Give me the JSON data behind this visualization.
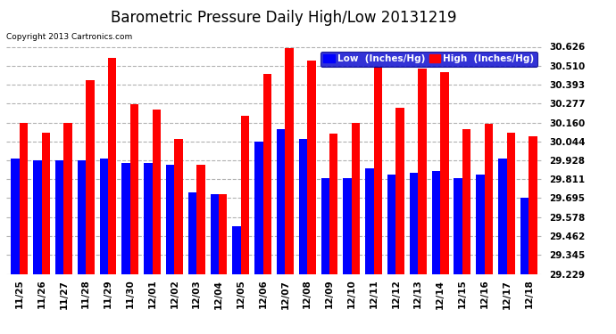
{
  "title": "Barometric Pressure Daily High/Low 20131219",
  "copyright": "Copyright 2013 Cartronics.com",
  "legend_low": "Low  (Inches/Hg)",
  "legend_high": "High  (Inches/Hg)",
  "ylim": [
    29.229,
    30.626
  ],
  "yticks": [
    30.626,
    30.51,
    30.393,
    30.277,
    30.16,
    30.044,
    29.928,
    29.811,
    29.695,
    29.578,
    29.462,
    29.345,
    29.229
  ],
  "categories": [
    "11/25",
    "11/26",
    "11/27",
    "11/28",
    "11/29",
    "11/30",
    "12/01",
    "12/02",
    "12/03",
    "12/04",
    "12/05",
    "12/06",
    "12/07",
    "12/08",
    "12/09",
    "12/10",
    "12/11",
    "12/12",
    "12/13",
    "12/14",
    "12/15",
    "12/16",
    "12/17",
    "12/18"
  ],
  "low": [
    29.94,
    29.93,
    29.93,
    29.93,
    29.94,
    29.91,
    29.91,
    29.9,
    29.73,
    29.72,
    29.52,
    30.04,
    30.12,
    30.06,
    29.82,
    29.82,
    29.88,
    29.84,
    29.85,
    29.86,
    29.82,
    29.84,
    29.94,
    29.695
  ],
  "high": [
    30.16,
    30.1,
    30.16,
    30.42,
    30.56,
    30.27,
    30.24,
    30.06,
    29.9,
    29.72,
    30.2,
    30.46,
    30.62,
    30.54,
    30.09,
    30.16,
    30.5,
    30.25,
    30.49,
    30.47,
    30.12,
    30.15,
    30.1,
    30.075
  ],
  "bar_color_low": "#0000ff",
  "bar_color_high": "#ff0000",
  "background_color": "#ffffff",
  "grid_color": "#aaaaaa",
  "title_fontsize": 12,
  "tick_fontsize": 7.5,
  "legend_fontsize": 7.5,
  "bar_width": 0.38
}
